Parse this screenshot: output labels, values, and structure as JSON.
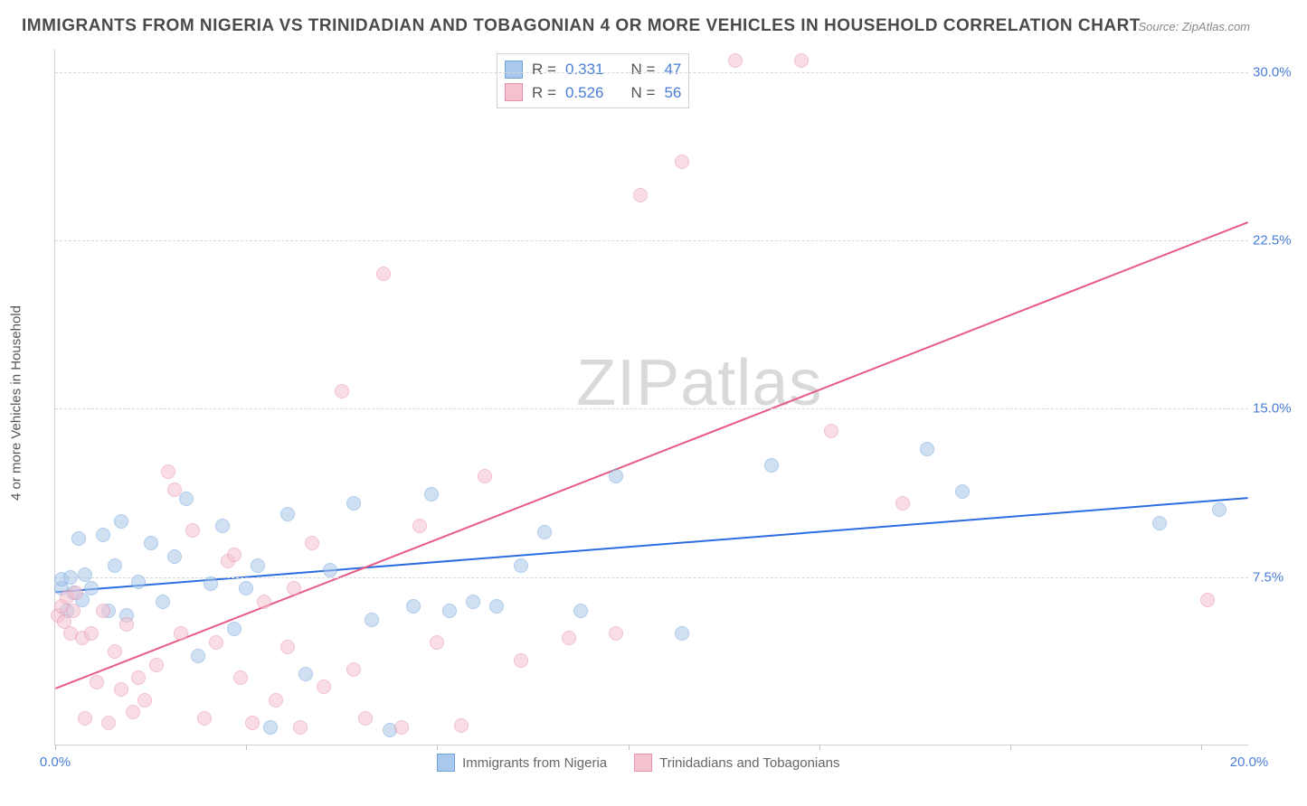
{
  "title": "IMMIGRANTS FROM NIGERIA VS TRINIDADIAN AND TOBAGONIAN 4 OR MORE VEHICLES IN HOUSEHOLD CORRELATION CHART",
  "source": "Source: ZipAtlas.com",
  "ylabel": "4 or more Vehicles in Household",
  "watermark_a": "ZIP",
  "watermark_b": "atlas",
  "chart": {
    "type": "scatter",
    "xlim": [
      0,
      20
    ],
    "ylim": [
      0,
      31
    ],
    "xtick_labels": [
      "0.0%",
      "20.0%"
    ],
    "xtick_positions": [
      0,
      20
    ],
    "xtick_marks": [
      0,
      3.2,
      6.4,
      9.6,
      12.8,
      16.0,
      19.2
    ],
    "ytick_labels": [
      "7.5%",
      "15.0%",
      "22.5%",
      "30.0%"
    ],
    "ytick_positions": [
      7.5,
      15.0,
      22.5,
      30.0
    ],
    "grid_color": "#d8d8d8",
    "background": "#ffffff",
    "marker_radius": 8,
    "marker_opacity": 0.55,
    "series": [
      {
        "name": "Immigrants from Nigeria",
        "color_fill": "#a9c8eb",
        "color_stroke": "#6fa2db",
        "R": "0.331",
        "N": "47",
        "trend": {
          "y_at_x0": 6.8,
          "y_at_xmax": 11.0,
          "stroke": "#2d6cdf",
          "width": 2
        },
        "points": [
          [
            0.1,
            7.0
          ],
          [
            0.1,
            7.4
          ],
          [
            0.2,
            6.0
          ],
          [
            0.25,
            7.5
          ],
          [
            0.3,
            6.8
          ],
          [
            0.4,
            9.2
          ],
          [
            0.45,
            6.5
          ],
          [
            0.5,
            7.6
          ],
          [
            0.6,
            7.0
          ],
          [
            0.8,
            9.4
          ],
          [
            0.9,
            6.0
          ],
          [
            1.0,
            8.0
          ],
          [
            1.1,
            10.0
          ],
          [
            1.2,
            5.8
          ],
          [
            1.4,
            7.3
          ],
          [
            1.6,
            9.0
          ],
          [
            1.8,
            6.4
          ],
          [
            2.0,
            8.4
          ],
          [
            2.2,
            11.0
          ],
          [
            2.4,
            4.0
          ],
          [
            2.6,
            7.2
          ],
          [
            2.8,
            9.8
          ],
          [
            3.0,
            5.2
          ],
          [
            3.2,
            7.0
          ],
          [
            3.4,
            8.0
          ],
          [
            3.6,
            0.8
          ],
          [
            3.9,
            10.3
          ],
          [
            4.2,
            3.2
          ],
          [
            4.6,
            7.8
          ],
          [
            5.0,
            10.8
          ],
          [
            5.3,
            5.6
          ],
          [
            5.6,
            0.7
          ],
          [
            6.0,
            6.2
          ],
          [
            6.3,
            11.2
          ],
          [
            6.6,
            6.0
          ],
          [
            7.0,
            6.4
          ],
          [
            7.4,
            6.2
          ],
          [
            7.8,
            8.0
          ],
          [
            8.2,
            9.5
          ],
          [
            8.8,
            6.0
          ],
          [
            9.4,
            12.0
          ],
          [
            10.5,
            5.0
          ],
          [
            12.0,
            12.5
          ],
          [
            14.6,
            13.2
          ],
          [
            15.2,
            11.3
          ],
          [
            18.5,
            9.9
          ],
          [
            19.5,
            10.5
          ]
        ]
      },
      {
        "name": "Trinidadians and Tobagonians",
        "color_fill": "#f4c2cf",
        "color_stroke": "#e98fa8",
        "R": "0.526",
        "N": "56",
        "trend": {
          "y_at_x0": 2.5,
          "y_at_xmax": 23.3,
          "stroke": "#e65b84",
          "width": 2
        },
        "points": [
          [
            0.05,
            5.8
          ],
          [
            0.1,
            6.2
          ],
          [
            0.15,
            5.5
          ],
          [
            0.2,
            6.6
          ],
          [
            0.25,
            5.0
          ],
          [
            0.3,
            6.0
          ],
          [
            0.35,
            6.8
          ],
          [
            0.45,
            4.8
          ],
          [
            0.5,
            1.2
          ],
          [
            0.6,
            5.0
          ],
          [
            0.7,
            2.8
          ],
          [
            0.8,
            6.0
          ],
          [
            0.9,
            1.0
          ],
          [
            1.0,
            4.2
          ],
          [
            1.1,
            2.5
          ],
          [
            1.2,
            5.4
          ],
          [
            1.3,
            1.5
          ],
          [
            1.4,
            3.0
          ],
          [
            1.5,
            2.0
          ],
          [
            1.7,
            3.6
          ],
          [
            1.9,
            12.2
          ],
          [
            2.0,
            11.4
          ],
          [
            2.1,
            5.0
          ],
          [
            2.3,
            9.6
          ],
          [
            2.5,
            1.2
          ],
          [
            2.7,
            4.6
          ],
          [
            2.9,
            8.2
          ],
          [
            3.1,
            3.0
          ],
          [
            3.3,
            1.0
          ],
          [
            3.5,
            6.4
          ],
          [
            3.7,
            2.0
          ],
          [
            3.9,
            4.4
          ],
          [
            4.1,
            0.8
          ],
          [
            4.3,
            9.0
          ],
          [
            4.5,
            2.6
          ],
          [
            4.8,
            15.8
          ],
          [
            5.0,
            3.4
          ],
          [
            5.2,
            1.2
          ],
          [
            5.5,
            21.0
          ],
          [
            5.8,
            0.8
          ],
          [
            6.1,
            9.8
          ],
          [
            6.4,
            4.6
          ],
          [
            6.8,
            0.9
          ],
          [
            7.2,
            12.0
          ],
          [
            7.8,
            3.8
          ],
          [
            8.6,
            4.8
          ],
          [
            9.4,
            5.0
          ],
          [
            9.8,
            24.5
          ],
          [
            10.5,
            26.0
          ],
          [
            11.4,
            30.5
          ],
          [
            12.5,
            30.5
          ],
          [
            13.0,
            14.0
          ],
          [
            14.2,
            10.8
          ],
          [
            19.3,
            6.5
          ],
          [
            3.0,
            8.5
          ],
          [
            4.0,
            7.0
          ]
        ]
      }
    ]
  },
  "legend_stats_label_R": "R =",
  "legend_stats_label_N": "N ="
}
